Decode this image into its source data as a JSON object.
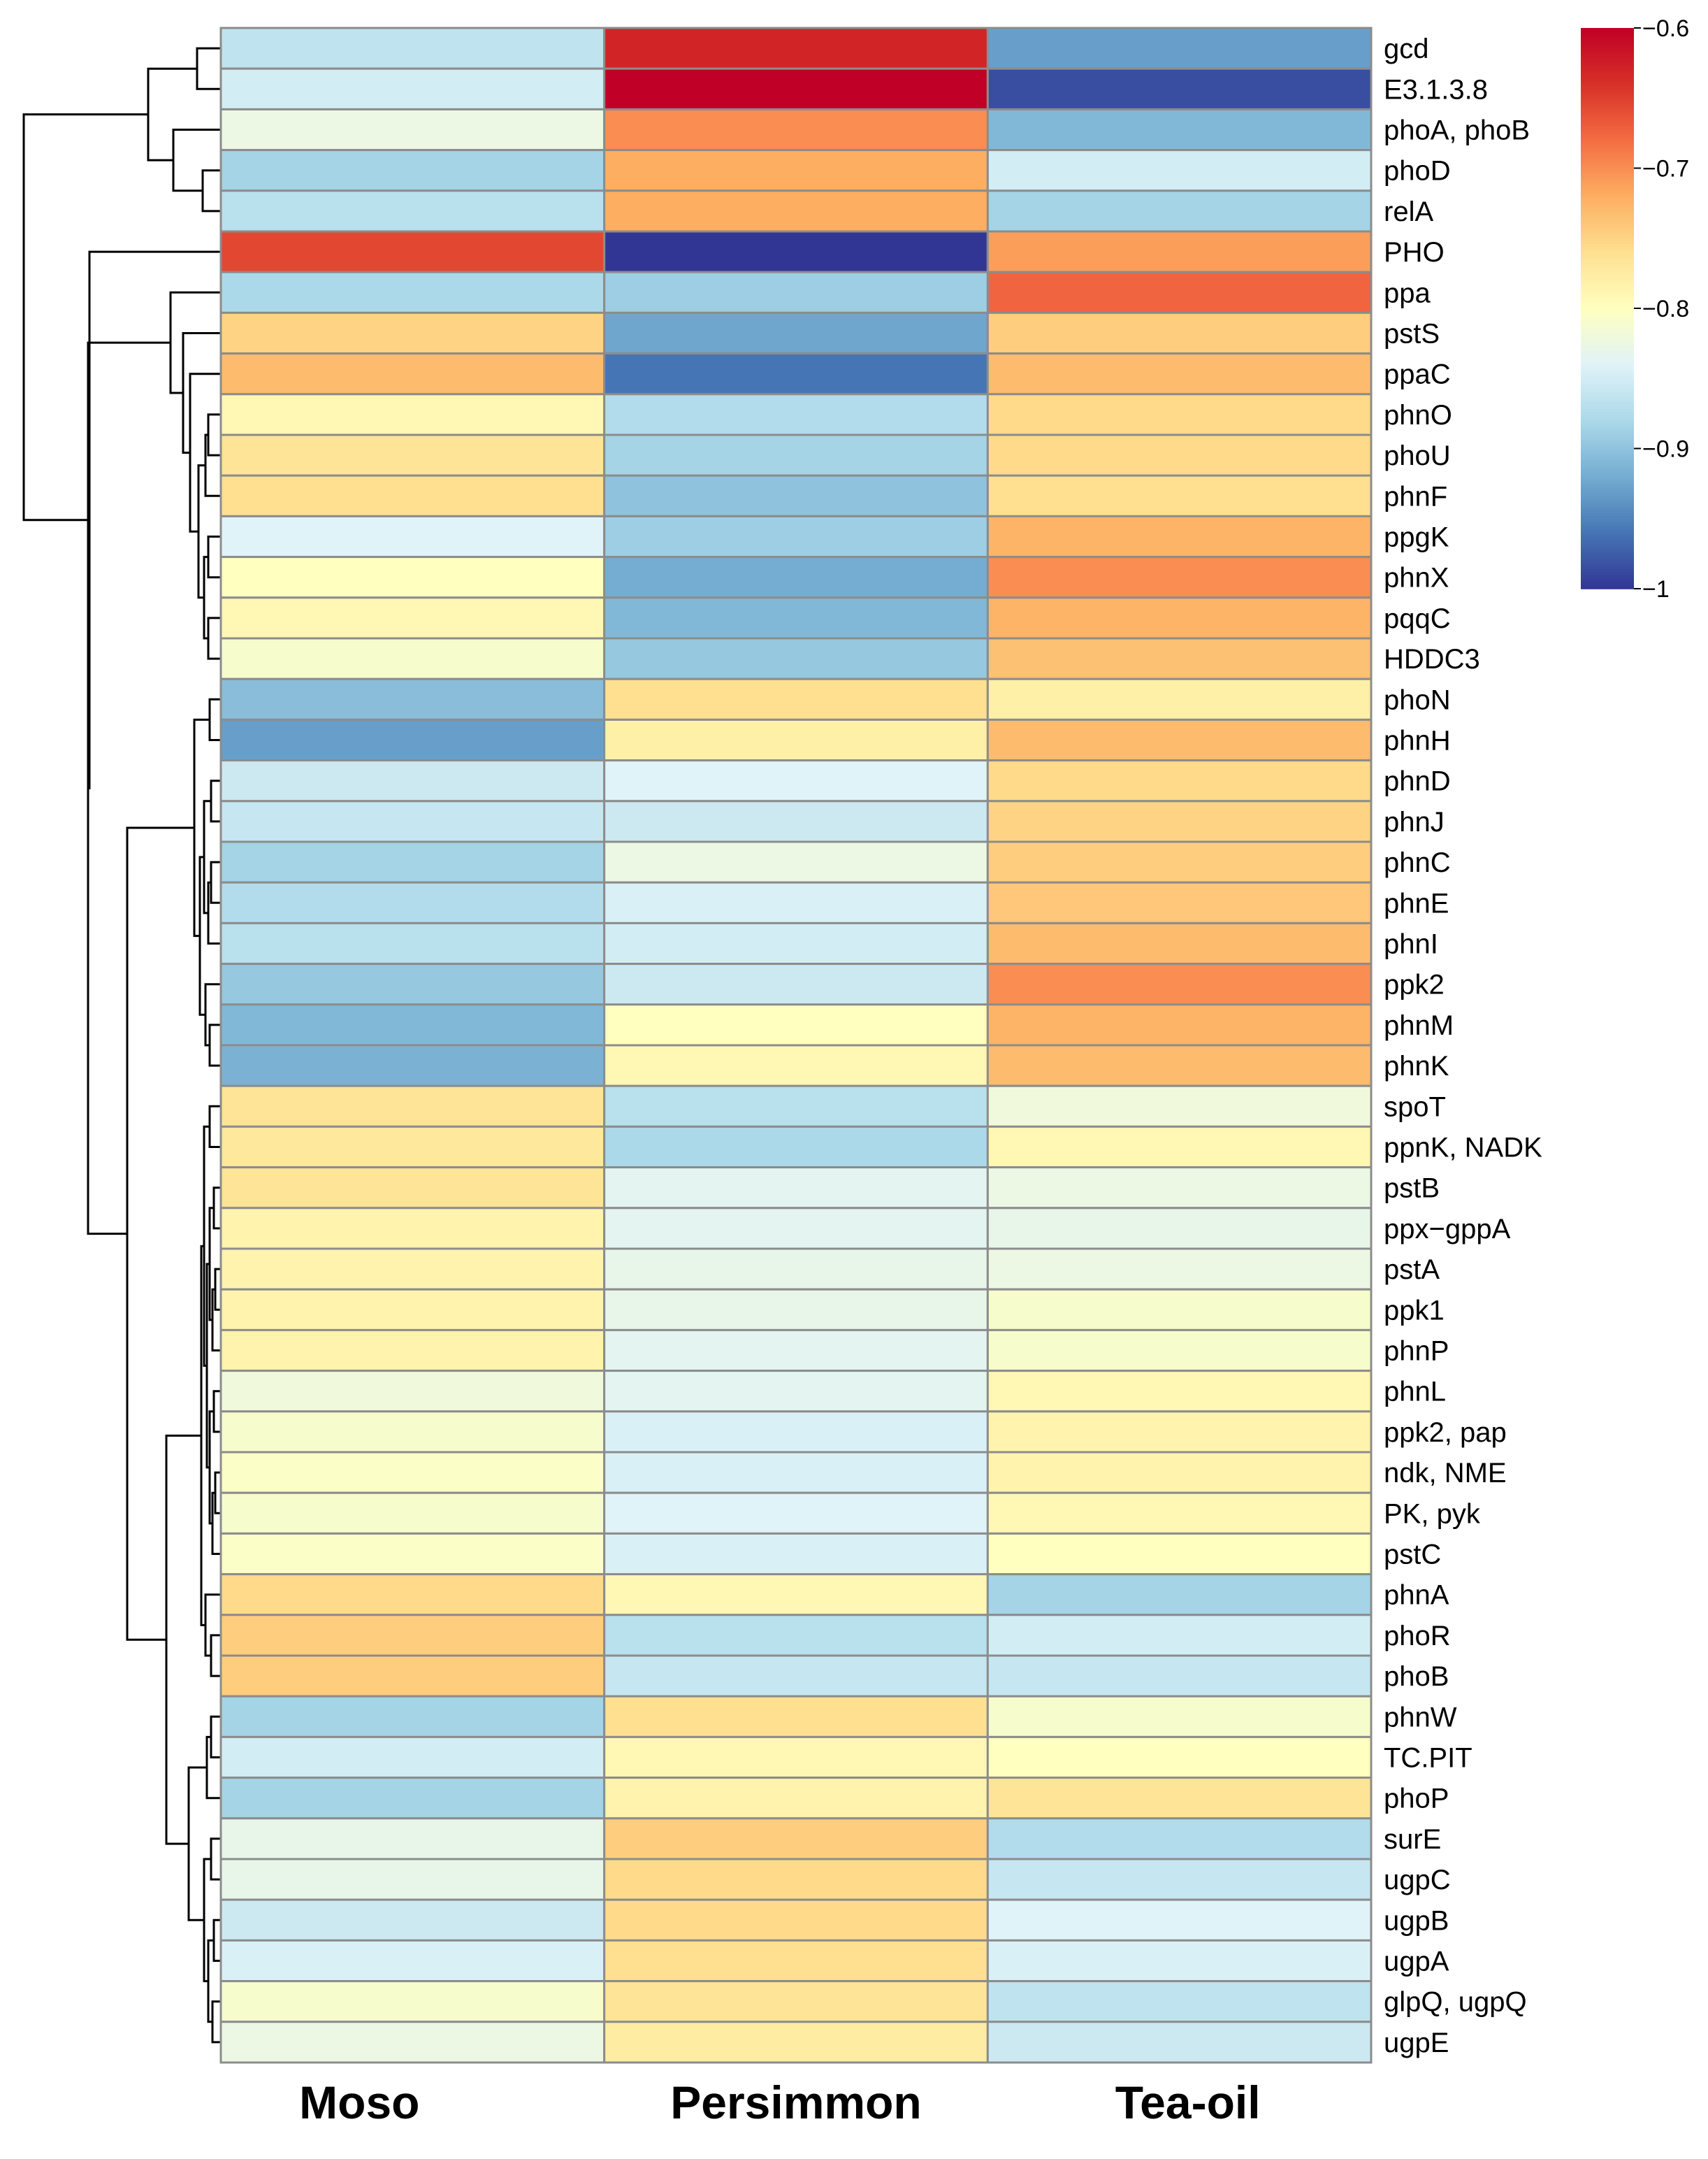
{
  "chart_data": {
    "type": "heatmap",
    "title": "",
    "columns": [
      "Moso",
      "Persimmon",
      "Tea-oil"
    ],
    "rows": [
      "gcd",
      "E3.1.3.8",
      "phoA, phoB",
      "phoD",
      "relA",
      "PHO",
      "ppa",
      "pstS",
      "ppaC",
      "phnO",
      "phoU",
      "phnF",
      "ppgK",
      "phnX",
      "pqqC",
      "HDDC3",
      "phoN",
      "phnH",
      "phnD",
      "phnJ",
      "phnC",
      "phnE",
      "phnI",
      "ppk2",
      "phnM",
      "phnK",
      "spoT",
      "ppnK, NADK",
      "pstB",
      "ppx−gppA",
      "pstA",
      "ppk1",
      "phnP",
      "phnL",
      "ppk2, pap",
      "ndk, NME",
      "PK, pyk",
      "pstC",
      "phnA",
      "phoR",
      "phoB",
      "phnW",
      "TC.PIT",
      "phoP",
      "surE",
      "ugpC",
      "ugpB",
      "ugpA",
      "glpQ, ugpQ",
      "ugpE"
    ],
    "values": [
      [
        -0.865,
        -0.63,
        -0.93
      ],
      [
        -0.85,
        -0.6,
        -0.985
      ],
      [
        -0.825,
        -0.7,
        -0.91
      ],
      [
        -0.885,
        -0.72,
        -0.85
      ],
      [
        -0.87,
        -0.72,
        -0.885
      ],
      [
        -0.655,
        -1.0,
        -0.71
      ],
      [
        -0.88,
        -0.89,
        -0.675
      ],
      [
        -0.75,
        -0.925,
        -0.745
      ],
      [
        -0.73,
        -0.96,
        -0.73
      ],
      [
        -0.79,
        -0.875,
        -0.755
      ],
      [
        -0.765,
        -0.885,
        -0.755
      ],
      [
        -0.76,
        -0.9,
        -0.76
      ],
      [
        -0.84,
        -0.89,
        -0.725
      ],
      [
        -0.8,
        -0.92,
        -0.7
      ],
      [
        -0.79,
        -0.91,
        -0.725
      ],
      [
        -0.81,
        -0.895,
        -0.735
      ],
      [
        -0.905,
        -0.76,
        -0.78
      ],
      [
        -0.93,
        -0.78,
        -0.73
      ],
      [
        -0.855,
        -0.84,
        -0.755
      ],
      [
        -0.86,
        -0.855,
        -0.75
      ],
      [
        -0.885,
        -0.825,
        -0.745
      ],
      [
        -0.875,
        -0.845,
        -0.74
      ],
      [
        -0.87,
        -0.85,
        -0.73
      ],
      [
        -0.895,
        -0.855,
        -0.7
      ],
      [
        -0.91,
        -0.8,
        -0.725
      ],
      [
        -0.915,
        -0.79,
        -0.73
      ],
      [
        -0.765,
        -0.87,
        -0.82
      ],
      [
        -0.77,
        -0.88,
        -0.79
      ],
      [
        -0.765,
        -0.835,
        -0.825
      ],
      [
        -0.785,
        -0.835,
        -0.83
      ],
      [
        -0.785,
        -0.83,
        -0.825
      ],
      [
        -0.785,
        -0.83,
        -0.81
      ],
      [
        -0.785,
        -0.835,
        -0.81
      ],
      [
        -0.82,
        -0.835,
        -0.79
      ],
      [
        -0.81,
        -0.845,
        -0.785
      ],
      [
        -0.805,
        -0.845,
        -0.785
      ],
      [
        -0.81,
        -0.84,
        -0.79
      ],
      [
        -0.805,
        -0.845,
        -0.8
      ],
      [
        -0.755,
        -0.79,
        -0.885
      ],
      [
        -0.745,
        -0.87,
        -0.85
      ],
      [
        -0.745,
        -0.86,
        -0.86
      ],
      [
        -0.885,
        -0.76,
        -0.81
      ],
      [
        -0.85,
        -0.79,
        -0.8
      ],
      [
        -0.885,
        -0.785,
        -0.765
      ],
      [
        -0.83,
        -0.745,
        -0.875
      ],
      [
        -0.83,
        -0.755,
        -0.86
      ],
      [
        -0.855,
        -0.755,
        -0.84
      ],
      [
        -0.845,
        -0.76,
        -0.845
      ],
      [
        -0.81,
        -0.765,
        -0.865
      ],
      [
        -0.825,
        -0.775,
        -0.855
      ]
    ],
    "colorbar": {
      "min": -1,
      "max": -0.6,
      "ticks": [
        -0.6,
        -0.7,
        -0.8,
        -0.9,
        -1
      ],
      "tick_labels": [
        "−0.6",
        "−0.7",
        "−0.8",
        "−0.9",
        "−1"
      ],
      "stops": [
        "#313695",
        "#4575B4",
        "#74ADD1",
        "#ABD9E9",
        "#E0F3F8",
        "#FFFFBF",
        "#FEE090",
        "#FDAE61",
        "#F46D43",
        "#D73027",
        "#C00026"
      ]
    },
    "row_dendrogram": "(((gcd,E3.1.3.8),((phoA, phoB,(phoD,relA)))),(PHO,((ppa,(pstS,(ppaC,(phnO,phoU,phnF,ppgK,phnX,pqqC,HDDC3)))),(((phoN,phnH),(phnD,phnJ,phnC,phnE,phnI,ppk2,phnM,phnK)),((spoT,ppnK,pstB,ppx-gppA,pstA,ppk1,phnP,phnL,ppk2 pap,ndk,PK,pstC,phnA,phoR,phoB),((phnW,TC.PIT,phoP),(surE,ugpC,ugpB,ugpA,glpQ,ugpE)))))))",
    "xlabel": "",
    "ylabel": ""
  }
}
